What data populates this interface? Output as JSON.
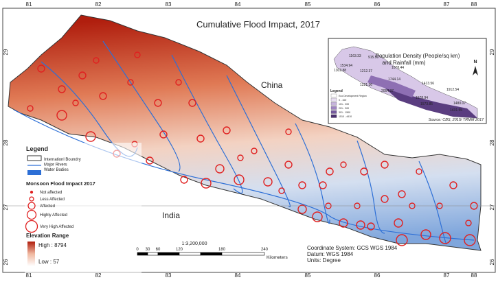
{
  "title": "Cumulative Flood Impact, 2017",
  "longitudes": [
    "81",
    "82",
    "83",
    "84",
    "85",
    "86",
    "87",
    "88"
  ],
  "latitudes": [
    "29",
    "28",
    "27",
    "26"
  ],
  "places": {
    "china": "China",
    "india": "India"
  },
  "legend": {
    "title": "Legend",
    "items": [
      "Internationl Boundry",
      "Major Rivers",
      "Water Bodies"
    ],
    "flood_title": "Monsoon Flood Impact 2017",
    "flood_items": [
      "Not affected",
      "Less Affected",
      "Affected",
      "Highly Affected",
      "Very High Affected"
    ],
    "elevation_title": "Elevation Range",
    "high": "High : 8794",
    "low": "Low : 57"
  },
  "scale": {
    "ratio": "1:3,200,000",
    "ticks": [
      "0",
      "30",
      "60",
      "120",
      "180",
      "240"
    ],
    "unit": "Kilometers"
  },
  "coordinates": [
    "Coordinate System: GCS WGS 1984",
    "Datum: WGS 1984",
    "Units: Degree"
  ],
  "inset": {
    "title": [
      "Population Density (People/sq km)",
      "and Rainfall (mm)"
    ],
    "north": "N",
    "legend_title": "Legend",
    "legend_items": [
      "Eco Development Region",
      "0 - 100",
      "101 - 200",
      "201 - 300",
      "301 - 1500",
      "1510 - 4410"
    ],
    "values": [
      "1163.33",
      "915.59",
      "1534.94",
      "1302.88",
      "1212.37",
      "1078.44",
      "1221.36",
      "1744.14",
      "2054.37",
      "1413.56",
      "1912.54",
      "1578.94",
      "1480.07",
      "1573.85",
      "1431.55"
    ],
    "source": "Source: CBS, 2015/ TRMM 2017"
  }
}
